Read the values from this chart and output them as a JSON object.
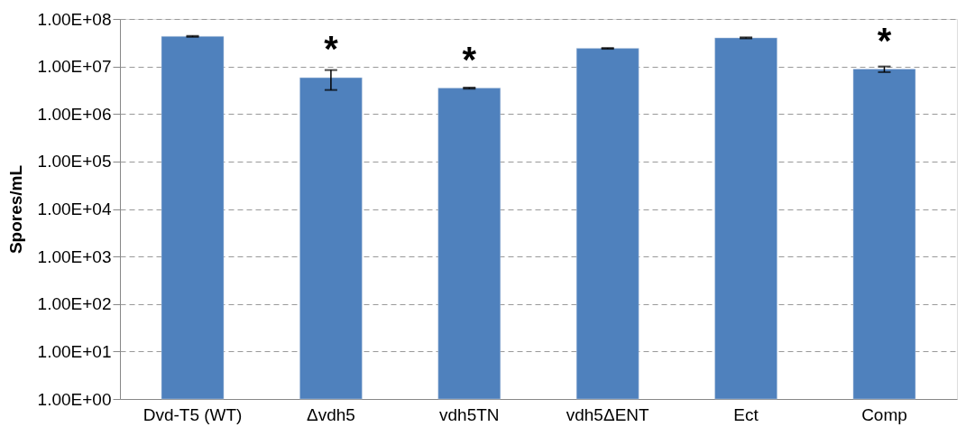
{
  "chart_data": {
    "type": "bar",
    "ylabel": "Spores/mL",
    "categories": [
      "Dvd-T5 (WT)",
      "Δvdh5",
      "vdh5TN",
      "vdh5ΔENT",
      "Ect",
      "Comp"
    ],
    "values": [
      43000000,
      5800000,
      3500000,
      24000000,
      40000000,
      8800000
    ],
    "errors": [
      1000000,
      2600000,
      100000,
      500000,
      1000000,
      1200000
    ],
    "color": "#4f81bd",
    "log": true,
    "grid": "y",
    "ylim": [
      1,
      100000000
    ],
    "yticks": [
      {
        "value": 1,
        "label": "1.00E+00"
      },
      {
        "value": 10,
        "label": "1.00E+01"
      },
      {
        "value": 100,
        "label": "1.00E+02"
      },
      {
        "value": 1000,
        "label": "1.00E+03"
      },
      {
        "value": 10000,
        "label": "1.00E+04"
      },
      {
        "value": 100000,
        "label": "1.00E+05"
      },
      {
        "value": 1000000,
        "label": "1.00E+06"
      },
      {
        "value": 10000000,
        "label": "1.00E+07"
      },
      {
        "value": 100000000,
        "label": "1.00E+08"
      }
    ],
    "annotations": [
      {
        "text": "*",
        "x": "Δvdh5",
        "y": 5800000
      },
      {
        "text": "*",
        "x": "vdh5TN",
        "y": 3500000
      },
      {
        "text": "*",
        "x": "Comp",
        "y": 8800000
      }
    ]
  }
}
